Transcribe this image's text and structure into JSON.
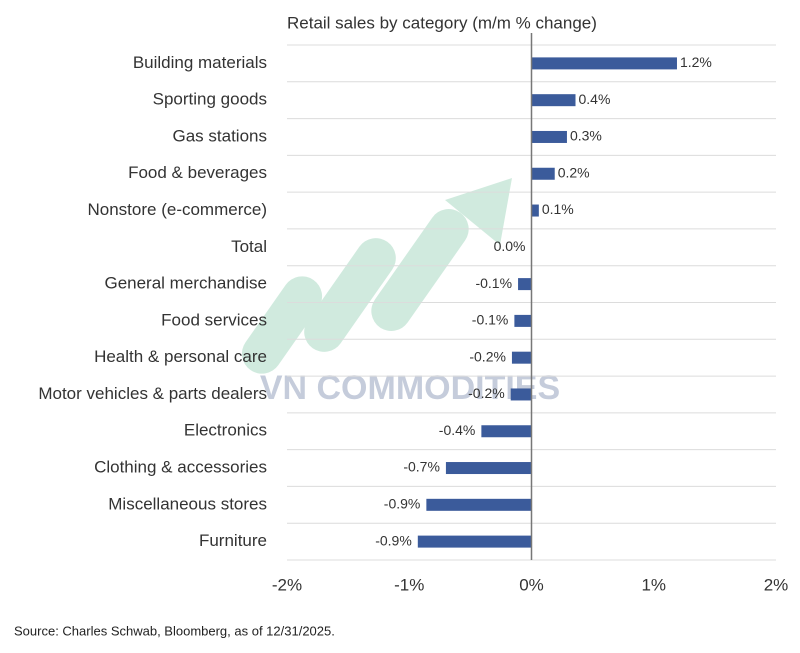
{
  "chart_data": {
    "type": "hbar",
    "title": "Retail sales by category (m/m % change)",
    "source": "Source: Charles Schwab, Bloomberg, as of 12/31/2025.",
    "watermark": "VN COMMODITIES",
    "categories": [
      "Building materials",
      "Sporting goods",
      "Gas stations",
      "Food & beverages",
      "Nonstore (e-commerce)",
      "Total",
      "General merchandise",
      "Food services",
      "Health & personal care",
      "Motor vehicles & parts dealers",
      "Electronics",
      "Clothing & accessories",
      "Miscellaneous stores",
      "Furniture"
    ],
    "values": [
      1.19,
      0.36,
      0.29,
      0.19,
      0.06,
      0.0,
      -0.11,
      -0.14,
      -0.16,
      -0.17,
      -0.41,
      -0.7,
      -0.86,
      -0.93
    ],
    "value_labels": [
      "1.2%",
      "0.4%",
      "0.3%",
      "0.2%",
      "0.1%",
      "0.0%",
      "-0.1%",
      "-0.1%",
      "-0.2%",
      "-0.2%",
      "-0.4%",
      "-0.7%",
      "-0.9%",
      "-0.9%"
    ],
    "color": "#3b5b9b",
    "xlim": [
      -2,
      2
    ],
    "xticks": [
      {
        "value": -2,
        "label": "-2%"
      },
      {
        "value": -1,
        "label": "-1%"
      },
      {
        "value": 0,
        "label": "0%"
      },
      {
        "value": 1,
        "label": "1%"
      },
      {
        "value": 2,
        "label": "2%"
      }
    ],
    "grid": true
  }
}
